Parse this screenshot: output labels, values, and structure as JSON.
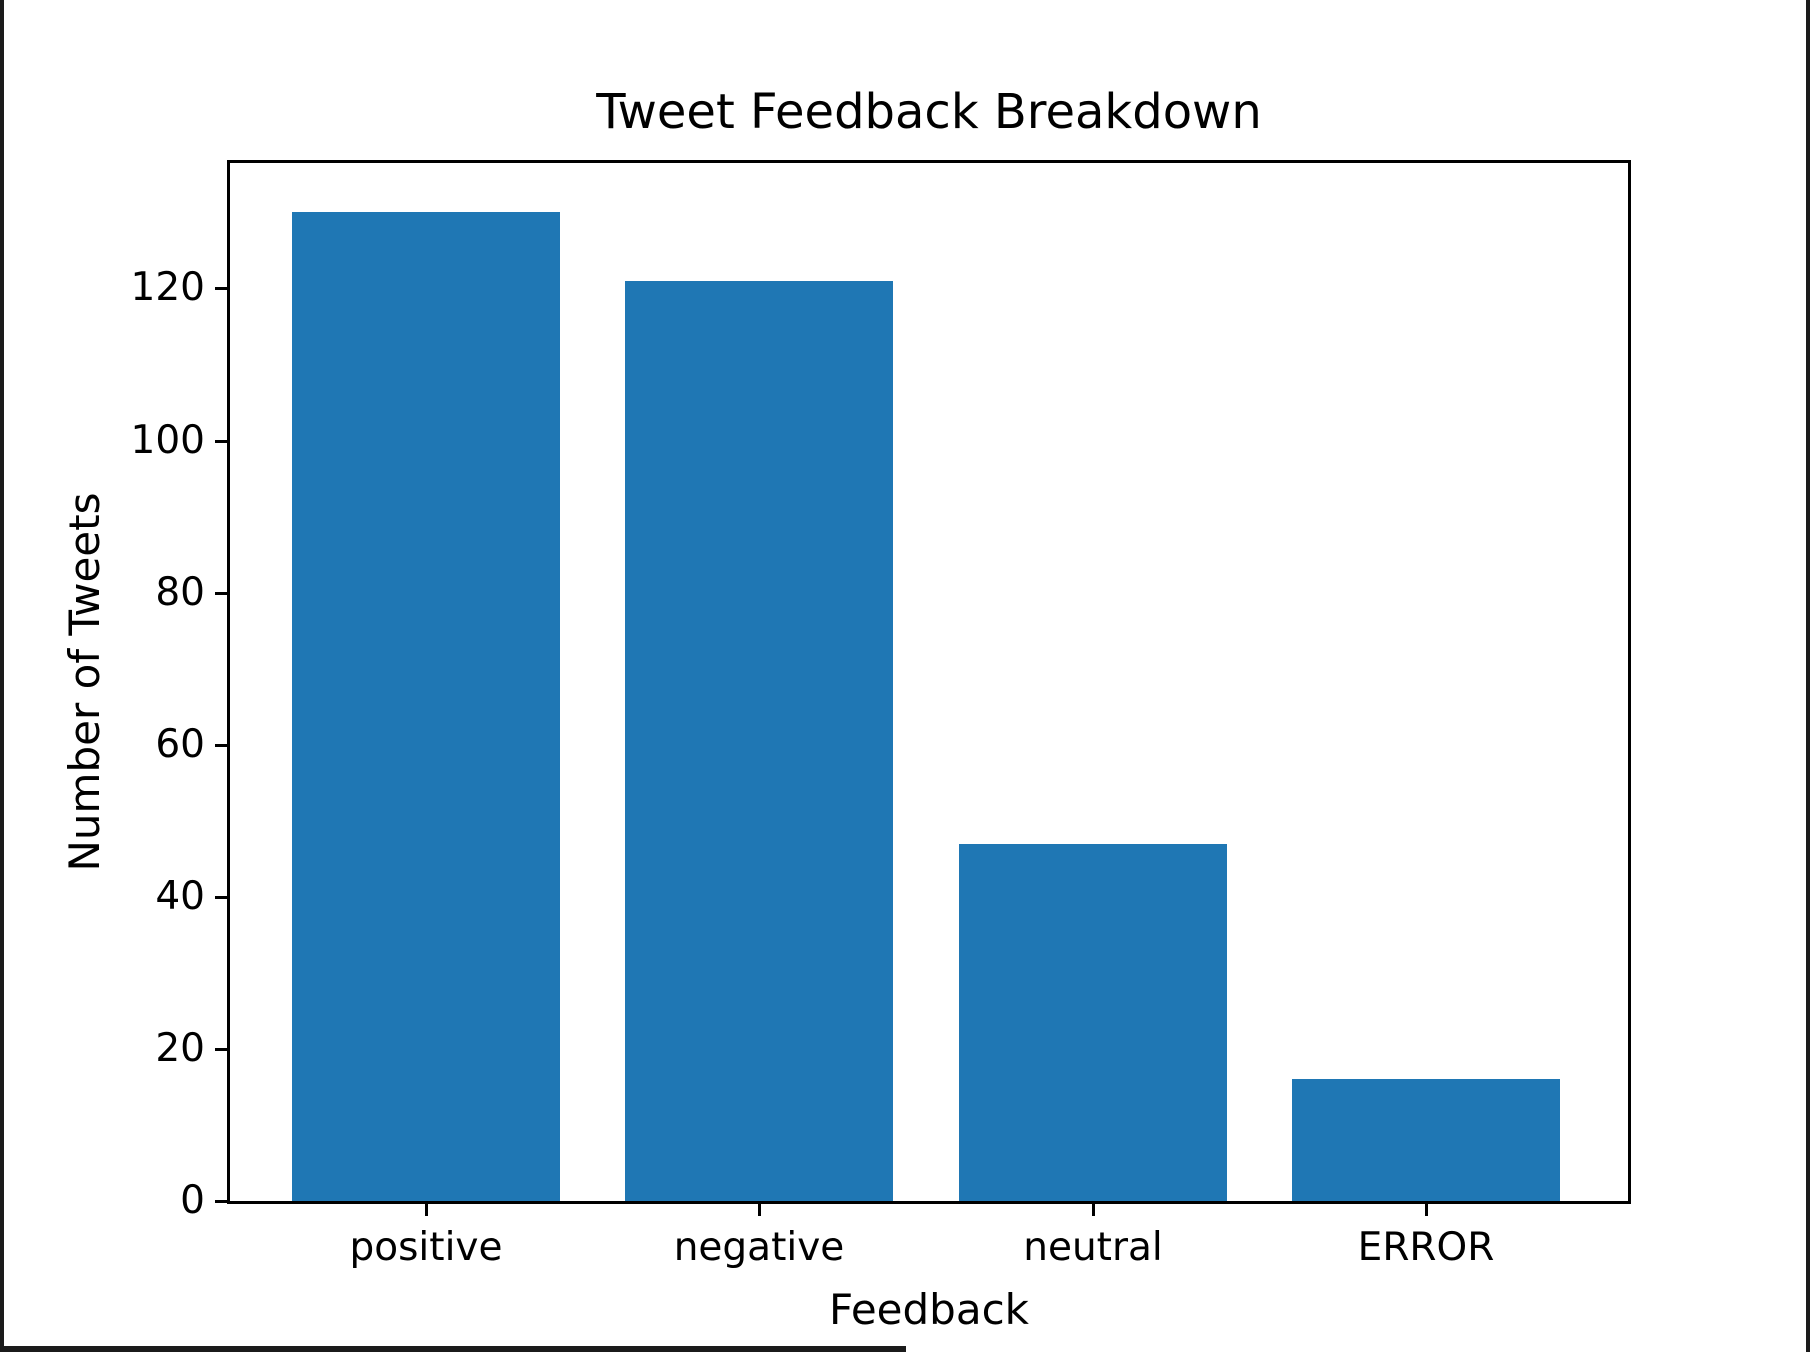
{
  "figure": {
    "background": "#ffffff",
    "frame_color": "#1b1b1b",
    "spine_color": "#000000",
    "text_color": "#000000"
  },
  "chart_data": {
    "type": "bar",
    "title": "Tweet Feedback Breakdown",
    "xlabel": "Feedback",
    "ylabel": "Number of Tweets",
    "categories": [
      "positive",
      "negative",
      "neutral",
      "ERROR"
    ],
    "values": [
      130,
      121,
      47,
      16
    ],
    "bar_color": "#1f77b4",
    "ylim": [
      0,
      136.5
    ],
    "yticks": [
      0,
      20,
      40,
      60,
      80,
      100,
      120
    ],
    "grid": false,
    "legend_position": "none",
    "bar_width_fraction": 0.8
  }
}
